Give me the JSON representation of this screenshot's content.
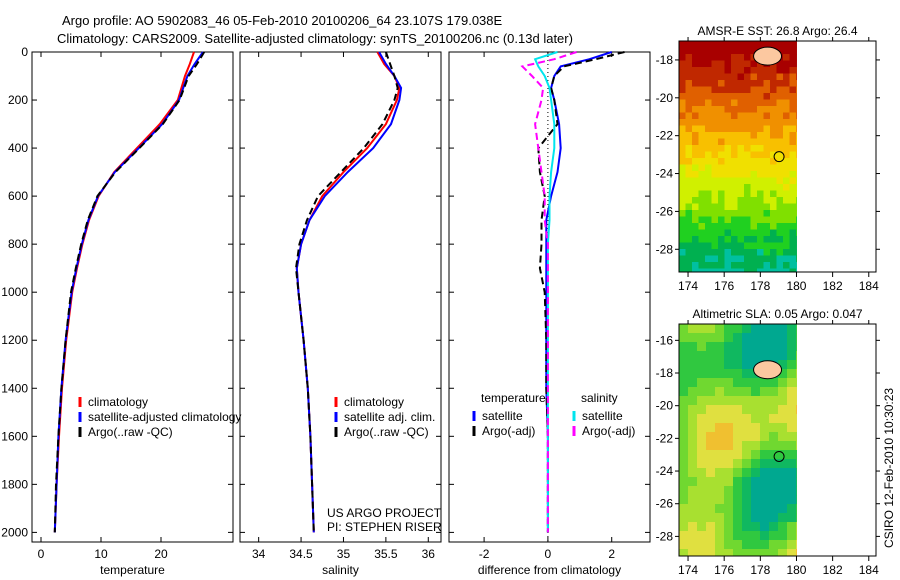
{
  "title_line1": "Argo profile: AO 5902083_46 05-Feb-2010 20100206_64 23.107S 179.038E",
  "title_line2": "Climatology: CARS2009. Satellite-adjusted climatology: synTS_20100206.nc (0.13d later)",
  "side_stamp": "CSIRO 12-Feb-2010 10:30:23",
  "colors": {
    "climatology": "#ff0000",
    "satellite": "#0000ff",
    "argo": "#000000",
    "sal_satellite": "#00e5ee",
    "sal_argo": "#ff00ff"
  },
  "chart_data": [
    {
      "type": "line",
      "id": "temperature",
      "xlabel": "temperature",
      "ylabel": "",
      "xlim": [
        -1.5,
        32
      ],
      "ylim": [
        2040,
        0
      ],
      "xticks": [
        "0",
        "10",
        "20"
      ],
      "xtickvals": [
        0,
        10,
        20
      ],
      "yticks": [
        "0",
        "200",
        "400",
        "600",
        "800",
        "1000",
        "1200",
        "1400",
        "1600",
        "1800",
        "2000"
      ],
      "depth": [
        0,
        50,
        100,
        200,
        300,
        400,
        500,
        600,
        700,
        800,
        900,
        1000,
        1200,
        1400,
        1600,
        1800,
        2000
      ],
      "series": [
        {
          "name": "climatology",
          "color": "#ff0000",
          "dash": false,
          "values": [
            25.5,
            24.8,
            24.0,
            22.8,
            19.8,
            16.0,
            12.2,
            9.6,
            8.0,
            6.9,
            6.0,
            5.2,
            4.2,
            3.5,
            3.0,
            2.6,
            2.3
          ]
        },
        {
          "name": "satellite-adjusted climatology",
          "color": "#0000ff",
          "dash": false,
          "values": [
            27.0,
            25.6,
            24.4,
            23.0,
            20.2,
            16.3,
            12.3,
            9.5,
            7.9,
            6.8,
            5.9,
            5.1,
            4.1,
            3.4,
            2.9,
            2.6,
            2.3
          ]
        },
        {
          "name": "Argo(..raw -QC)",
          "color": "#000000",
          "dash": true,
          "values": [
            27.2,
            26.0,
            24.6,
            23.1,
            20.3,
            16.4,
            12.4,
            9.4,
            7.8,
            6.7,
            5.8,
            5.0,
            4.1,
            3.4,
            2.9,
            2.5,
            2.3
          ]
        }
      ],
      "legend": [
        "climatology",
        "satellite-adjusted climatology",
        "Argo(..raw -QC)"
      ]
    },
    {
      "type": "line",
      "id": "salinity",
      "xlabel": "salinity",
      "xlim": [
        33.78,
        36.15
      ],
      "xticks": [
        "34",
        "34.5",
        "35",
        "35.5",
        "36"
      ],
      "xtickvals": [
        34,
        34.5,
        35,
        35.5,
        36
      ],
      "depth": [
        0,
        50,
        100,
        150,
        200,
        300,
        400,
        500,
        600,
        700,
        800,
        900,
        1000,
        1200,
        1400,
        1600,
        1800,
        2000
      ],
      "series": [
        {
          "name": "climatology",
          "color": "#ff0000",
          "dash": false,
          "values": [
            35.4,
            35.48,
            35.6,
            35.66,
            35.63,
            35.5,
            35.28,
            35.0,
            34.75,
            34.6,
            34.5,
            34.45,
            34.47,
            34.53,
            34.58,
            34.61,
            34.63,
            34.65
          ]
        },
        {
          "name": "satellite adj. clim.",
          "color": "#0000ff",
          "dash": false,
          "values": [
            35.42,
            35.5,
            35.6,
            35.68,
            35.66,
            35.56,
            35.35,
            35.05,
            34.78,
            34.6,
            34.5,
            34.45,
            34.47,
            34.53,
            34.58,
            34.61,
            34.63,
            34.65
          ]
        },
        {
          "name": "Argo(..raw -QC)",
          "color": "#000000",
          "dash": true,
          "values": [
            35.5,
            35.55,
            35.6,
            35.64,
            35.6,
            35.46,
            35.24,
            34.97,
            34.7,
            34.57,
            34.48,
            34.44,
            34.47,
            34.53,
            34.58,
            34.61,
            34.63,
            34.65
          ]
        }
      ],
      "legend": [
        "climatology",
        "satellite adj. clim.",
        "Argo(..raw -QC)"
      ],
      "annotation": [
        "US ARGO PROJECT",
        "PI: STEPHEN RISER"
      ]
    },
    {
      "type": "line",
      "id": "difference",
      "xlabel": "difference from climatology",
      "xlim": [
        -3.1,
        3.2
      ],
      "xticks": [
        "-2",
        "0",
        "2"
      ],
      "xtickvals": [
        -2,
        0,
        2
      ],
      "depth": [
        0,
        30,
        60,
        100,
        150,
        200,
        300,
        400,
        500,
        600,
        700,
        800,
        900,
        1000,
        1200,
        1400,
        1600,
        1800,
        2000
      ],
      "series": [
        {
          "name": "temperature satellite",
          "color": "#0000ff",
          "dash": false,
          "values": [
            2.0,
            1.3,
            0.4,
            0.2,
            0.1,
            0.2,
            0.35,
            0.4,
            0.3,
            0.1,
            -0.05,
            -0.05,
            -0.05,
            -0.05,
            -0.05,
            -0.05,
            0,
            0,
            0
          ]
        },
        {
          "name": "temperature Argo(-adj)",
          "color": "#000000",
          "dash": true,
          "values": [
            2.4,
            1.5,
            0.5,
            0.2,
            0.1,
            0.2,
            0.3,
            -0.3,
            -0.25,
            -0.1,
            -0.2,
            -0.2,
            -0.25,
            -0.1,
            -0.05,
            -0.05,
            0,
            0,
            0
          ]
        },
        {
          "name": "salinity satellite",
          "color": "#00e5ee",
          "dash": false,
          "values": [
            0.3,
            -0.4,
            -0.3,
            -0.1,
            0.05,
            0.1,
            0.2,
            0.2,
            0.1,
            0.05,
            0.05,
            0,
            0,
            0,
            0,
            0,
            0,
            0,
            0
          ]
        },
        {
          "name": "salinity Argo(-adj)",
          "color": "#ff00ff",
          "dash": true,
          "values": [
            0.9,
            0.2,
            -0.8,
            -0.5,
            -0.15,
            -0.2,
            -0.4,
            -0.3,
            -0.2,
            -0.1,
            -0.1,
            0,
            0,
            0,
            0,
            0,
            0,
            0,
            0
          ]
        }
      ],
      "legend_headers": [
        "temperature",
        "salinity"
      ],
      "legend": [
        "satellite",
        "Argo(-adj)",
        "satellite",
        "Argo(-adj)"
      ]
    }
  ],
  "maps": [
    {
      "title": "AMSR-E SST: 26.8 Argo: 26.4",
      "xticks": [
        "174",
        "176",
        "178",
        "180",
        "182",
        "184"
      ],
      "yticks": [
        "-18",
        "-20",
        "-22",
        "-24",
        "-26",
        "-28"
      ],
      "lonlim": [
        173.5,
        184.4
      ],
      "latlim": [
        -17.0,
        -29.2
      ],
      "float_lon": 179.038,
      "float_lat": -23.107
    },
    {
      "title": "Altimetric SLA: 0.05 Argo: 0.047",
      "xticks": [
        "174",
        "176",
        "178",
        "180",
        "182",
        "184"
      ],
      "yticks": [
        "-16",
        "-18",
        "-20",
        "-22",
        "-24",
        "-26",
        "-28"
      ],
      "lonlim": [
        173.5,
        184.4
      ],
      "latlim": [
        -15.0,
        -29.2
      ],
      "float_lon": 179.038,
      "float_lat": -23.107
    }
  ]
}
